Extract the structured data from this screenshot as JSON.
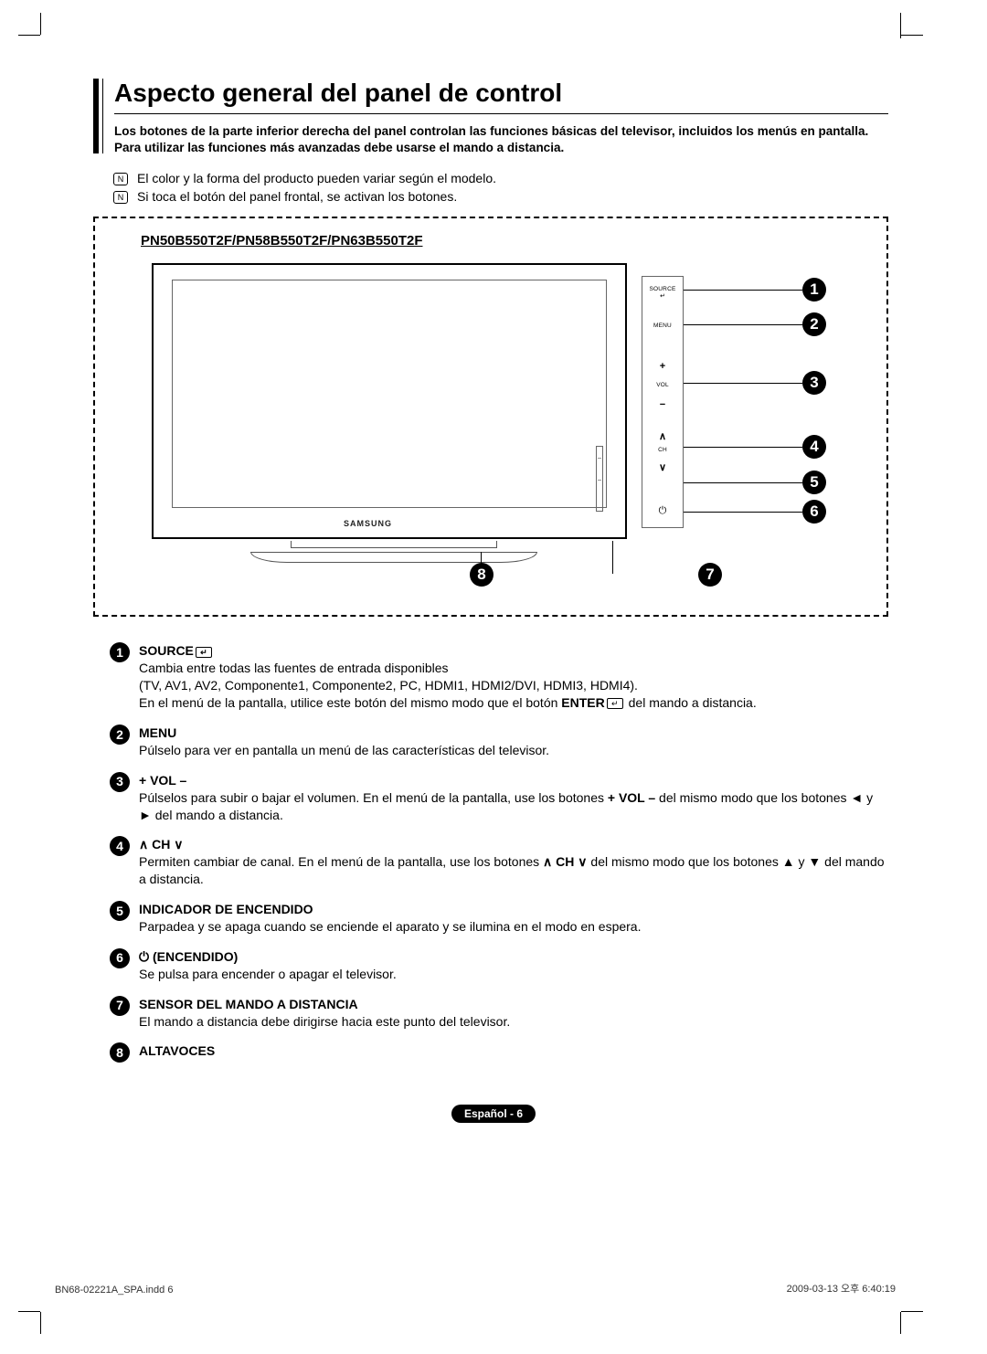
{
  "title": "Aspecto general del panel de control",
  "intro": "Los botones de la parte inferior derecha del panel controlan las funciones básicas del televisor, incluidos los menús en pantalla. Para utilizar las funciones más avanzadas debe usarse el mando a distancia.",
  "notes": [
    "El color y la forma del producto pueden variar según el modelo.",
    "Si toca el botón del panel frontal, se activan los botones."
  ],
  "note_icon": "N",
  "model_label": "PN50B550T2F/PN58B550T2F/PN63B550T2F",
  "tv_logo": "SAMSUNG",
  "side_panel": {
    "source": "SOURCE",
    "menu": "MENU",
    "vol": "VOL",
    "vol_plus": "+",
    "vol_minus": "−",
    "ch": "CH",
    "ch_up": "∧",
    "ch_down": "∨",
    "power": "⏻"
  },
  "callout_numbers": [
    "1",
    "2",
    "3",
    "4",
    "5",
    "6",
    "7",
    "8"
  ],
  "legend": [
    {
      "num": "1",
      "title_pre": "SOURCE",
      "icon_after_title": "↵",
      "lines": [
        "Cambia entre todas las fuentes de entrada disponibles",
        "(TV, AV1, AV2, Componente1, Componente2, PC, HDMI1, HDMI2/DVI, HDMI3, HDMI4).",
        "En el menú de la pantalla, utilice este botón del mismo modo que el botón <b>ENTER</b><icon>↵</icon> del mando a distancia."
      ]
    },
    {
      "num": "2",
      "title_pre": "MENU",
      "lines": [
        "Púlselo para ver en pantalla un menú de las características del televisor."
      ]
    },
    {
      "num": "3",
      "title_pre": "+ VOL –",
      "lines": [
        "Púlselos para subir o bajar el volumen. En el menú de la pantalla, use los botones <b>+ VOL –</b> del mismo modo que los botones ◄ y ► del mando a distancia."
      ]
    },
    {
      "num": "4",
      "title_pre": "∧ CH ∨",
      "lines": [
        "Permiten cambiar de canal. En el menú de la pantalla, use los botones <b>∧ CH ∨</b> del mismo modo que los botones ▲ y ▼ del mando a distancia."
      ]
    },
    {
      "num": "5",
      "title_pre": "INDICADOR DE ENCENDIDO",
      "lines": [
        "Parpadea y se apaga cuando se enciende el aparato y se ilumina en el modo en espera."
      ]
    },
    {
      "num": "6",
      "title_pre": "⏻ (ENCENDIDO)",
      "lines": [
        "Se pulsa para encender o apagar el televisor."
      ]
    },
    {
      "num": "7",
      "title_pre": "SENSOR DEL MANDO A DISTANCIA",
      "lines": [
        "El mando a distancia debe dirigirse hacia este punto del televisor."
      ]
    },
    {
      "num": "8",
      "title_pre": "ALTAVOCES",
      "lines": []
    }
  ],
  "page_badge": "Español - 6",
  "meta_left": "BN68-02221A_SPA.indd   6",
  "meta_right": "2009-03-13   오후 6:40:19",
  "colors": {
    "text": "#000000",
    "bg": "#ffffff",
    "badge_bg": "#000000",
    "badge_fg": "#ffffff"
  }
}
